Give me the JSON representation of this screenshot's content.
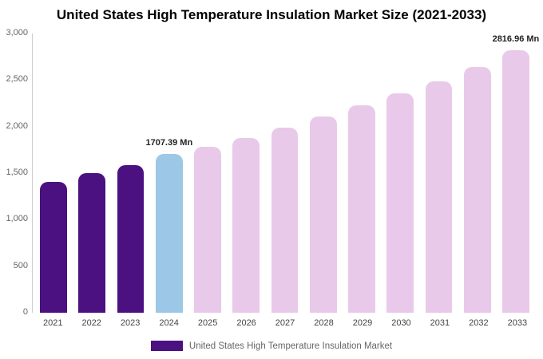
{
  "chart_data": {
    "type": "bar",
    "title": "United States High Temperature Insulation Market Size (2021-2033)",
    "categories": [
      "2021",
      "2022",
      "2023",
      "2024",
      "2025",
      "2026",
      "2027",
      "2028",
      "2029",
      "2030",
      "2031",
      "2032",
      "2033"
    ],
    "values": [
      1410,
      1500,
      1590,
      1707.39,
      1780,
      1880,
      1990,
      2105,
      2230,
      2360,
      2490,
      2640,
      2816.96
    ],
    "ylim": [
      0,
      3000
    ],
    "y_tick_values": [
      0,
      500,
      1000,
      1500,
      2000,
      2500,
      3000
    ],
    "y_tick_labels": [
      "0",
      "500",
      "1,000",
      "1,500",
      "2,000",
      "2,500",
      "3,000"
    ],
    "unit": "Mn",
    "data_labels": {
      "2024": "1707.39 Mn",
      "2033": "2816.96 Mn"
    },
    "bar_segments": [
      "historical",
      "historical",
      "historical",
      "current",
      "forecast",
      "forecast",
      "forecast",
      "forecast",
      "forecast",
      "forecast",
      "forecast",
      "forecast",
      "forecast"
    ],
    "colors": {
      "historical": "#4B1180",
      "current": "#9CC7E6",
      "forecast": "#E9C9E9"
    },
    "legend": "United States High Temperature Insulation Market",
    "grid": false,
    "legend_position": "bottom"
  }
}
